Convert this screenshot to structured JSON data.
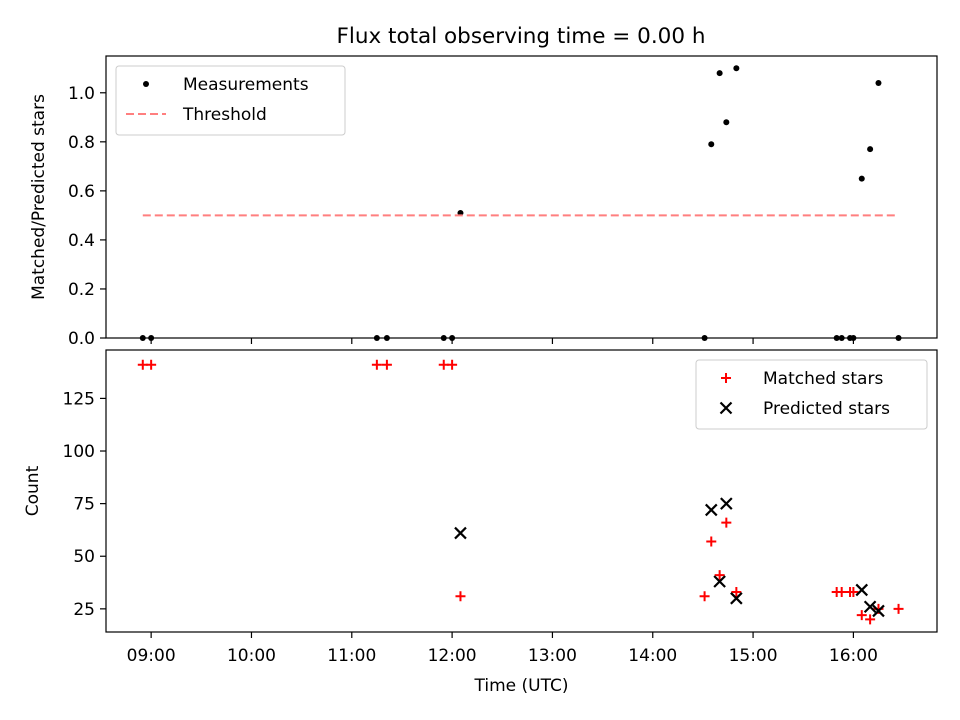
{
  "figure": {
    "title": "Flux total observing time = 0.00 h"
  },
  "chart_data": [
    {
      "type": "scatter",
      "ylabel": "Matched/Predicted stars",
      "xlabel": "",
      "xlim": [
        "08:33",
        "16:50"
      ],
      "ylim": [
        0,
        1.15
      ],
      "yticks": [
        0.0,
        0.2,
        0.4,
        0.6,
        0.8,
        1.0
      ],
      "ytick_labels": [
        "0.0",
        "0.2",
        "0.4",
        "0.6",
        "0.8",
        "1.0"
      ],
      "legend_position": "upper-left",
      "grid": false,
      "series": [
        {
          "name": "Measurements",
          "marker": "dot",
          "color": "#000000",
          "points": [
            {
              "x": "08:55",
              "y": 0.0
            },
            {
              "x": "09:00",
              "y": 0.0
            },
            {
              "x": "11:15",
              "y": 0.0
            },
            {
              "x": "11:21",
              "y": 0.0
            },
            {
              "x": "11:55",
              "y": 0.0
            },
            {
              "x": "12:00",
              "y": 0.0
            },
            {
              "x": "12:05",
              "y": 0.51
            },
            {
              "x": "14:31",
              "y": 0.0
            },
            {
              "x": "14:35",
              "y": 0.79
            },
            {
              "x": "14:40",
              "y": 1.08
            },
            {
              "x": "14:44",
              "y": 0.88
            },
            {
              "x": "14:50",
              "y": 1.1
            },
            {
              "x": "15:50",
              "y": 0.0
            },
            {
              "x": "15:53",
              "y": 0.0
            },
            {
              "x": "15:58",
              "y": 0.0
            },
            {
              "x": "16:00",
              "y": 0.0
            },
            {
              "x": "16:05",
              "y": 0.65
            },
            {
              "x": "16:10",
              "y": 0.77
            },
            {
              "x": "16:15",
              "y": 1.04
            },
            {
              "x": "16:27",
              "y": 0.0
            }
          ]
        },
        {
          "name": "Threshold",
          "line": "dashed",
          "color": "#ff7f7f",
          "points": [
            {
              "x": "08:55",
              "y": 0.5
            },
            {
              "x": "16:27",
              "y": 0.5
            }
          ]
        }
      ]
    },
    {
      "type": "scatter",
      "xlabel": "Time (UTC)",
      "ylabel": "Count",
      "xlim": [
        "08:33",
        "16:50"
      ],
      "ylim": [
        14,
        148
      ],
      "xticks": [
        "09:00",
        "10:00",
        "11:00",
        "12:00",
        "13:00",
        "14:00",
        "15:00",
        "16:00"
      ],
      "yticks": [
        25,
        50,
        75,
        100,
        125
      ],
      "ytick_labels": [
        "25",
        "50",
        "75",
        "100",
        "125"
      ],
      "legend_position": "upper-right",
      "grid": false,
      "series": [
        {
          "name": "Matched stars",
          "marker": "plus",
          "color": "#ff0000",
          "points": [
            {
              "x": "08:55",
              "y": 141
            },
            {
              "x": "09:00",
              "y": 141
            },
            {
              "x": "11:15",
              "y": 141
            },
            {
              "x": "11:21",
              "y": 141
            },
            {
              "x": "11:55",
              "y": 141
            },
            {
              "x": "12:00",
              "y": 141
            },
            {
              "x": "12:05",
              "y": 31
            },
            {
              "x": "14:31",
              "y": 31
            },
            {
              "x": "14:35",
              "y": 57
            },
            {
              "x": "14:40",
              "y": 41
            },
            {
              "x": "14:44",
              "y": 66
            },
            {
              "x": "14:50",
              "y": 33
            },
            {
              "x": "15:50",
              "y": 33
            },
            {
              "x": "15:53",
              "y": 33
            },
            {
              "x": "15:58",
              "y": 33
            },
            {
              "x": "16:00",
              "y": 33
            },
            {
              "x": "16:05",
              "y": 22
            },
            {
              "x": "16:10",
              "y": 20
            },
            {
              "x": "16:15",
              "y": 25
            },
            {
              "x": "16:27",
              "y": 25
            }
          ]
        },
        {
          "name": "Predicted stars",
          "marker": "x",
          "color": "#000000",
          "points": [
            {
              "x": "12:05",
              "y": 61
            },
            {
              "x": "14:35",
              "y": 72
            },
            {
              "x": "14:40",
              "y": 38
            },
            {
              "x": "14:44",
              "y": 75
            },
            {
              "x": "14:50",
              "y": 30
            },
            {
              "x": "16:05",
              "y": 34
            },
            {
              "x": "16:10",
              "y": 26
            },
            {
              "x": "16:15",
              "y": 24
            }
          ]
        }
      ]
    }
  ]
}
